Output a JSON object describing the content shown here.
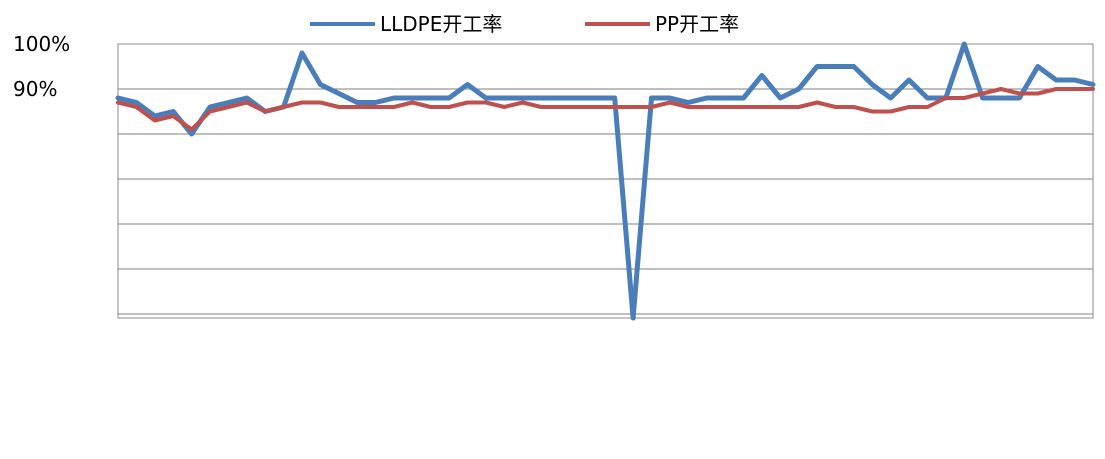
{
  "chart_data": {
    "type": "line",
    "title": "",
    "xlabel": "",
    "ylabel": "",
    "legend_position": "top",
    "grid": true,
    "ylim": [
      0,
      100
    ],
    "y_ticks": [
      "100%",
      "90%"
    ],
    "x_count": 54,
    "series": [
      {
        "name": "LLDPE开工率",
        "color": "#4A7EBB",
        "values": [
          88,
          87,
          84,
          85,
          80,
          86,
          87,
          88,
          85,
          86,
          98,
          91,
          89,
          87,
          87,
          88,
          88,
          88,
          88,
          91,
          88,
          88,
          88,
          88,
          88,
          88,
          88,
          88,
          0,
          88,
          88,
          87,
          88,
          88,
          88,
          93,
          88,
          90,
          95,
          95,
          95,
          91,
          88,
          92,
          88,
          88,
          100,
          88,
          88,
          88,
          95,
          92,
          92,
          91
        ]
      },
      {
        "name": "PP开工率",
        "color": "#C0504D",
        "values": [
          87,
          86,
          83,
          84,
          81,
          85,
          86,
          87,
          85,
          86,
          87,
          87,
          86,
          86,
          86,
          86,
          87,
          86,
          86,
          87,
          87,
          86,
          87,
          86,
          86,
          86,
          86,
          86,
          86,
          86,
          87,
          86,
          86,
          86,
          86,
          86,
          86,
          86,
          87,
          86,
          86,
          85,
          85,
          86,
          86,
          88,
          88,
          89,
          90,
          89,
          89,
          90,
          90,
          90
        ]
      }
    ]
  }
}
